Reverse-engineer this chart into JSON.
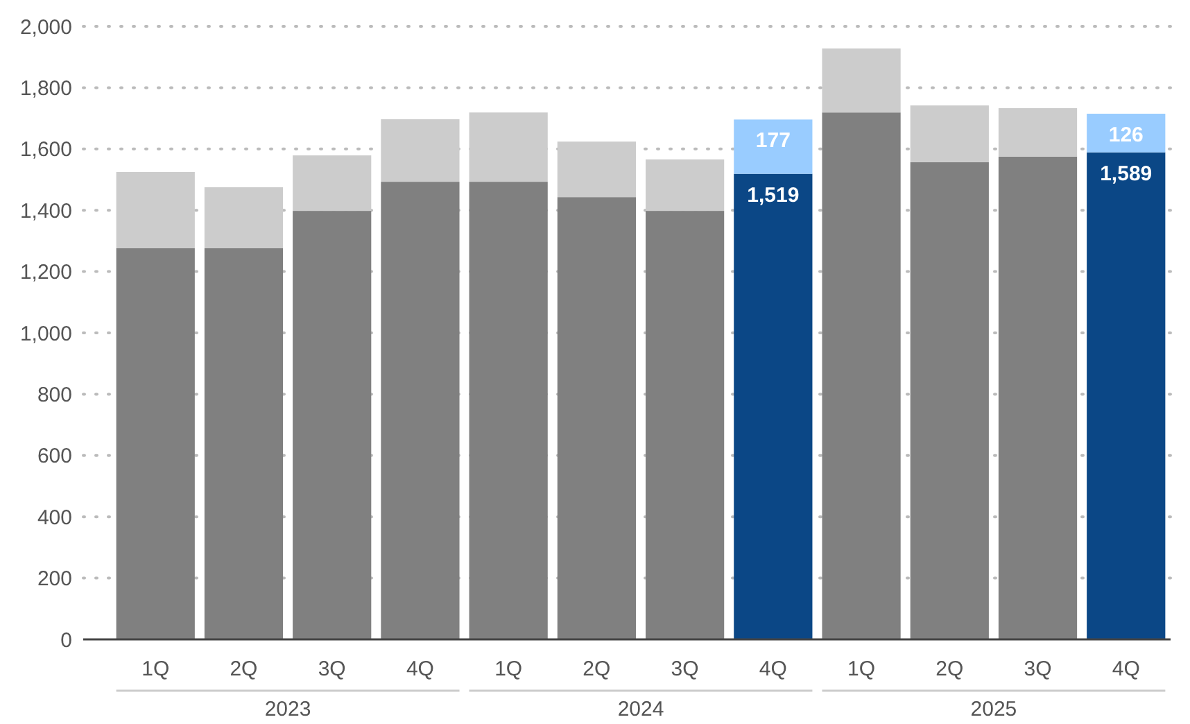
{
  "chart_data": {
    "type": "bar",
    "stacked": true,
    "categories": [
      "1Q",
      "2Q",
      "3Q",
      "4Q",
      "1Q",
      "2Q",
      "3Q",
      "4Q",
      "1Q",
      "2Q",
      "3Q",
      "4Q"
    ],
    "series": [
      {
        "colors": [
          "#808080",
          "#808080",
          "#808080",
          "#808080",
          "#808080",
          "#808080",
          "#808080",
          "#0b4786",
          "#808080",
          "#808080",
          "#808080",
          "#0b4786"
        ],
        "values": [
          1276,
          1276,
          1398,
          1493,
          1493,
          1443,
          1398,
          1519,
          1719,
          1557,
          1575,
          1589
        ],
        "value_labels": [
          null,
          null,
          null,
          null,
          null,
          null,
          null,
          "1,519",
          null,
          null,
          null,
          "1,589"
        ]
      },
      {
        "colors": [
          "#cccccc",
          "#cccccc",
          "#cccccc",
          "#cccccc",
          "#cccccc",
          "#cccccc",
          "#cccccc",
          "#99ccff",
          "#cccccc",
          "#cccccc",
          "#cccccc",
          "#99ccff"
        ],
        "values": [
          249,
          199,
          181,
          204,
          226,
          181,
          168,
          177,
          209,
          185,
          158,
          126
        ],
        "value_labels": [
          null,
          null,
          null,
          null,
          null,
          null,
          null,
          "177",
          null,
          null,
          null,
          "126"
        ]
      }
    ],
    "ylim": [
      0,
      2000
    ],
    "yticks": [
      0,
      {
        "value": 200,
        "label": "200"
      },
      {
        "value": 400,
        "label": "400"
      },
      {
        "value": 600,
        "label": "600"
      },
      {
        "value": 800,
        "label": "800"
      },
      {
        "value": 1000,
        "label": "1,000"
      },
      {
        "value": 1200,
        "label": "1,200"
      },
      {
        "value": 1400,
        "label": "1,400"
      },
      {
        "value": 1600,
        "label": "1,600"
      },
      {
        "value": 1800,
        "label": "1,800"
      },
      {
        "value": 2000,
        "label": "2,000"
      }
    ],
    "grid": "y",
    "annotations": [
      "2023",
      "2024",
      "2025"
    ]
  }
}
